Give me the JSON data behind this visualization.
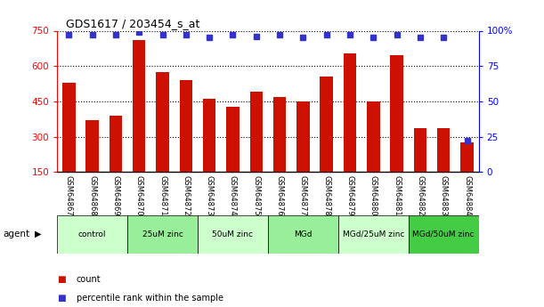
{
  "title": "GDS1617 / 203454_s_at",
  "categories": [
    "GSM64867",
    "GSM64868",
    "GSM64869",
    "GSM64870",
    "GSM64871",
    "GSM64872",
    "GSM64873",
    "GSM64874",
    "GSM64875",
    "GSM64876",
    "GSM64877",
    "GSM64878",
    "GSM64879",
    "GSM64880",
    "GSM64881",
    "GSM64882",
    "GSM64883",
    "GSM64884"
  ],
  "counts": [
    530,
    370,
    390,
    710,
    575,
    540,
    460,
    425,
    490,
    470,
    450,
    555,
    655,
    450,
    645,
    335,
    335,
    275
  ],
  "percentiles": [
    97,
    97,
    97,
    99,
    97,
    97,
    95,
    97,
    96,
    97,
    95,
    97,
    97,
    95,
    97,
    95,
    95,
    22
  ],
  "bar_color": "#cc1100",
  "dot_color": "#3333cc",
  "ylim_left": [
    150,
    750
  ],
  "ylim_right": [
    0,
    100
  ],
  "yticks_left": [
    150,
    300,
    450,
    600,
    750
  ],
  "yticks_right": [
    0,
    25,
    50,
    75,
    100
  ],
  "groups": [
    {
      "label": "control",
      "start": 0,
      "end": 3,
      "color": "#ccffcc"
    },
    {
      "label": "25uM zinc",
      "start": 3,
      "end": 6,
      "color": "#99ee99"
    },
    {
      "label": "50uM zinc",
      "start": 6,
      "end": 9,
      "color": "#ccffcc"
    },
    {
      "label": "MGd",
      "start": 9,
      "end": 12,
      "color": "#99ee99"
    },
    {
      "label": "MGd/25uM zinc",
      "start": 12,
      "end": 15,
      "color": "#ccffcc"
    },
    {
      "label": "MGd/50uM zinc",
      "start": 15,
      "end": 18,
      "color": "#44cc44"
    }
  ],
  "legend_items": [
    {
      "label": "count",
      "color": "#cc1100"
    },
    {
      "label": "percentile rank within the sample",
      "color": "#3333cc"
    }
  ],
  "agent_label": "agent",
  "grid_style": "dotted",
  "background_color": "#ffffff",
  "plot_bg_color": "#ffffff",
  "tick_bg_color": "#cccccc"
}
